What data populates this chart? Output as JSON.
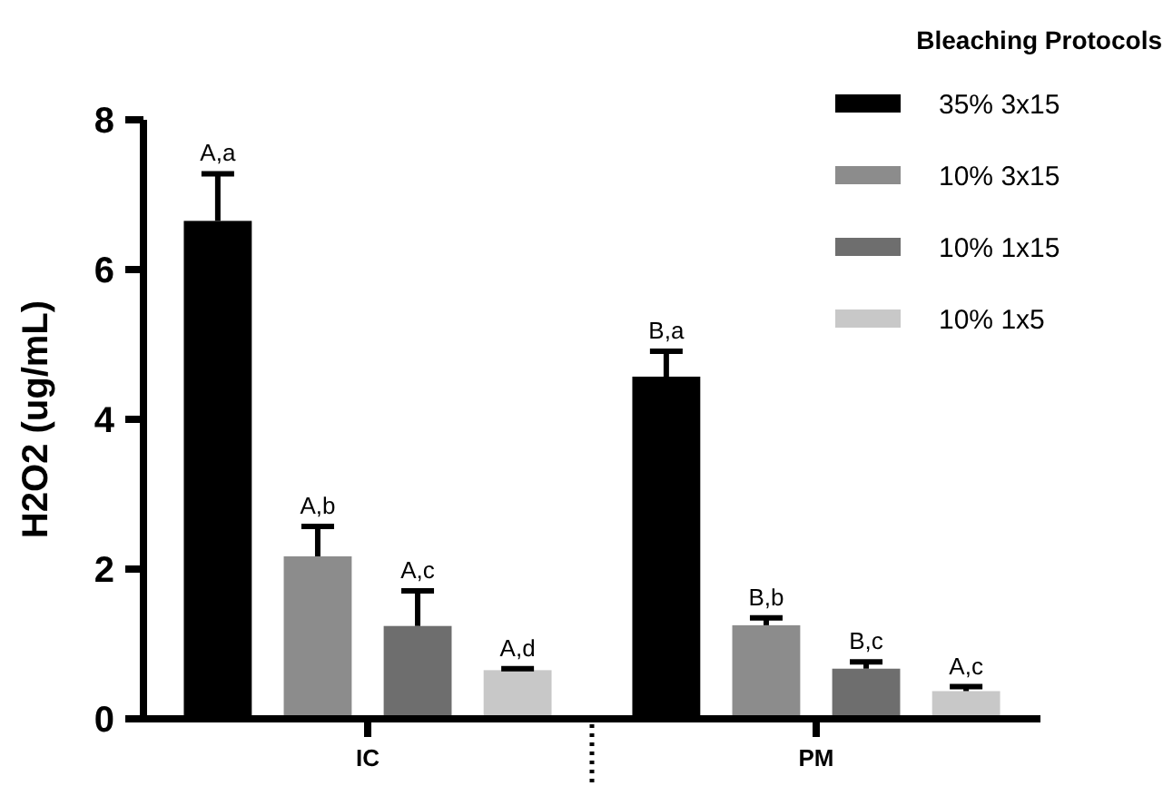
{
  "chart_data": {
    "type": "bar",
    "ylabel": "H2O2 (ug/mL)",
    "legend_title": "Bleaching Protocols",
    "legend": "top right",
    "categories": [
      "IC",
      "PM"
    ],
    "ylim": [
      0,
      8
    ],
    "yticks": [
      0,
      2,
      4,
      6,
      8
    ],
    "series": [
      {
        "name": "35% 3x15",
        "color": "#000000",
        "values": [
          6.65,
          4.57
        ],
        "errors": [
          [
            6.65,
            7.28
          ],
          [
            4.57,
            4.91
          ]
        ],
        "value_labels": [
          "A,a",
          "B,a"
        ]
      },
      {
        "name": "10% 3x15",
        "color": "#8c8c8c",
        "values": [
          2.17,
          1.25
        ],
        "errors": [
          [
            2.17,
            2.57
          ],
          [
            1.25,
            1.35
          ]
        ],
        "value_labels": [
          "A,b",
          "B,b"
        ]
      },
      {
        "name": "10% 1x15",
        "color": "#6e6e6e",
        "values": [
          1.24,
          0.67
        ],
        "errors": [
          [
            1.24,
            1.71
          ],
          [
            0.67,
            0.76
          ]
        ],
        "value_labels": [
          "A,c",
          "B,c"
        ]
      },
      {
        "name": "10% 1x5",
        "color": "#c8c8c8",
        "values": [
          0.65,
          0.37
        ],
        "errors": [
          [
            0.65,
            0.67
          ],
          [
            0.37,
            0.43
          ]
        ],
        "value_labels": [
          "A,d",
          "A,c"
        ]
      }
    ]
  }
}
